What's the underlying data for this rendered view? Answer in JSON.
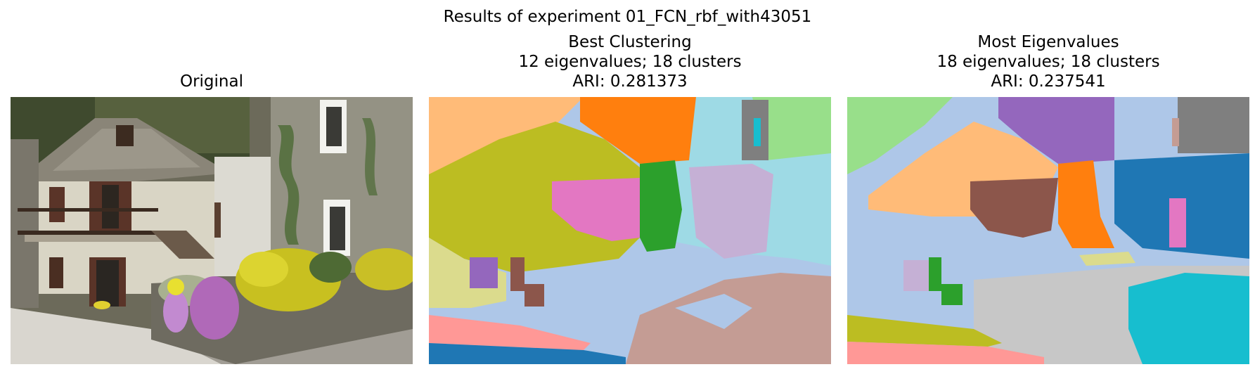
{
  "figure": {
    "suptitle": "Results of experiment 01_FCN_rbf_with43051"
  },
  "panels": [
    {
      "title_lines": [
        "Original"
      ],
      "image": "photo of a stone house with wooden balcony and yellow and purple flowers on a stone wall"
    },
    {
      "title_lines": [
        "Best Clustering",
        "12 eigenvalues; 18 clusters",
        "ARI: 0.281373"
      ],
      "image": "segmentation map with colored clusters"
    },
    {
      "title_lines": [
        "Most Eigenvalues",
        "18 eigenvalues; 18 clusters",
        "ARI: 0.237541"
      ],
      "image": "segmentation map with colored clusters"
    }
  ],
  "colors": {
    "blue": "#1f77b4",
    "light_blue": "#aec7e8",
    "orange": "#ff7f0e",
    "light_orange": "#ffbb78",
    "green": "#2ca02c",
    "light_green": "#98df8a",
    "red": "#d62728",
    "pink_red": "#ff9896",
    "purple": "#9467bd",
    "lavender": "#c5b0d5",
    "brown": "#8c564b",
    "light_brown": "#c49c94",
    "pink": "#e377c2",
    "light_pink": "#f7b6d2",
    "gray": "#7f7f7f",
    "light_gray": "#c7c7c7",
    "olive": "#bcbd22",
    "khaki": "#dbdb8d",
    "cyan": "#17becf",
    "light_cyan": "#9edae5"
  }
}
